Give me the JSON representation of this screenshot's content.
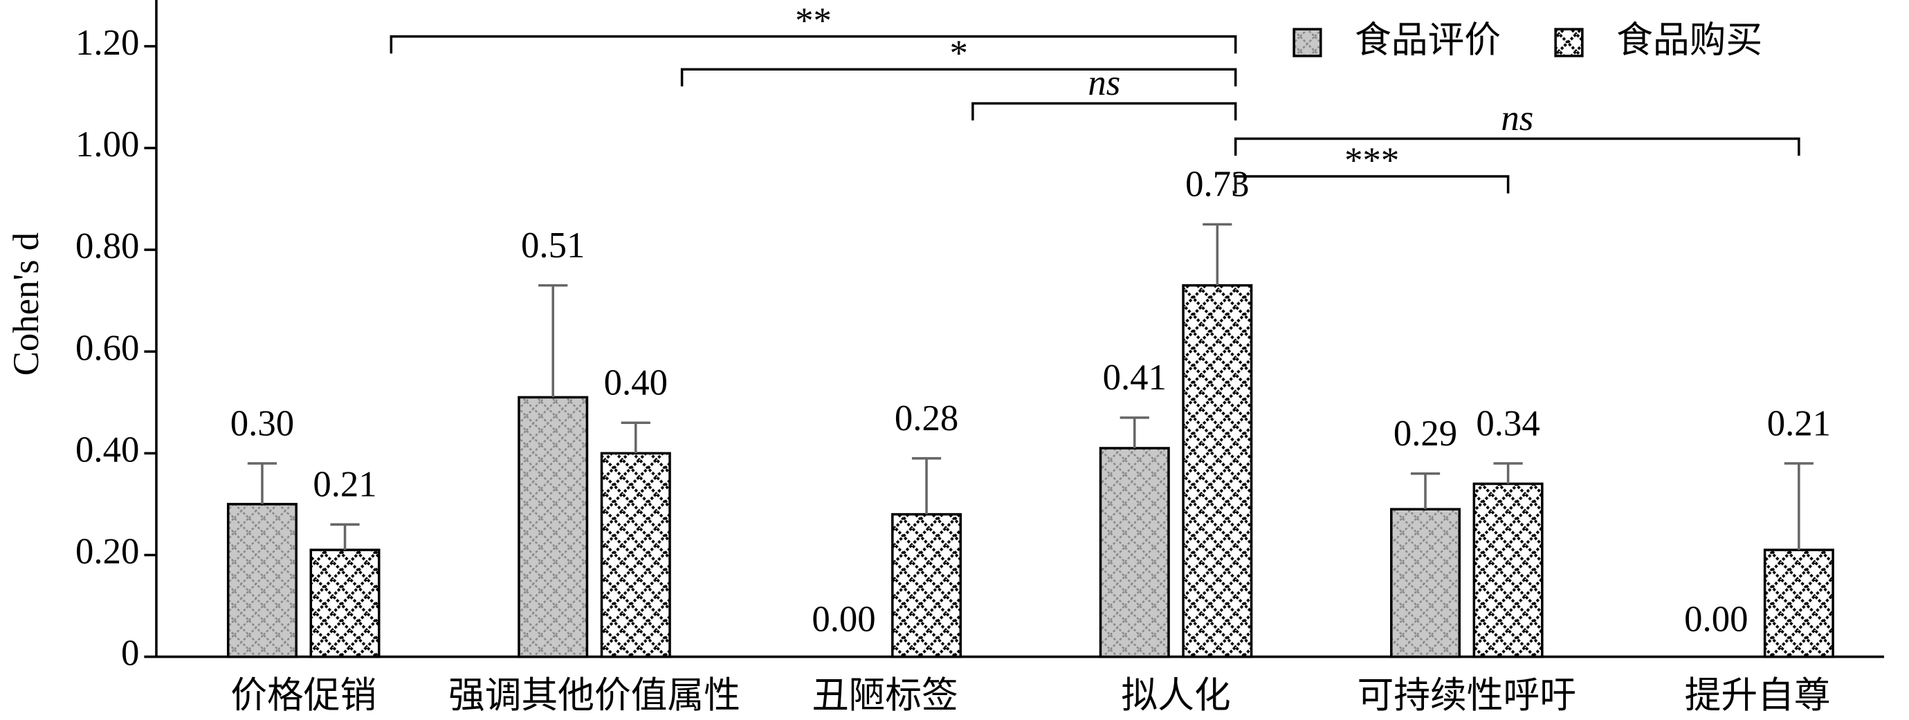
{
  "chart_data": {
    "type": "bar",
    "y_label": "Cohen's d",
    "categories": [
      "价格促销",
      "强调其他价值属性",
      "丑陋标签",
      "拟人化",
      "可持续性呼吁",
      "提升自尊"
    ],
    "series": [
      {
        "name": "食品评价",
        "color": "#c8c8c8",
        "values": [
          0.3,
          0.51,
          0,
          0.41,
          0.29,
          0
        ],
        "value_labels": [
          "0.30",
          "0.51",
          "0.00",
          "0.41",
          "0.29",
          "0.00"
        ],
        "errors": [
          0.08,
          0.22,
          null,
          0.06,
          0.07,
          null
        ]
      },
      {
        "name": "食品购买",
        "color": "#ffffff",
        "values": [
          0.21,
          0.4,
          0.28,
          0.73,
          0.34,
          0.21
        ],
        "value_labels": [
          "0.21",
          "0.40",
          "0.28",
          "0.73",
          "0.34",
          "0.21"
        ],
        "errors": [
          0.05,
          0.06,
          0.11,
          0.12,
          0.04,
          0.17
        ]
      }
    ],
    "ylim": [
      0,
      1.29
    ],
    "yticks": [
      {
        "value": 0,
        "label": "0"
      },
      {
        "value": 0.2,
        "label": "0.20"
      },
      {
        "value": 0.4,
        "label": "0.40"
      },
      {
        "value": 0.6,
        "label": "0.60"
      },
      {
        "value": 0.8,
        "label": "0.80"
      },
      {
        "value": 1.0,
        "label": "1.00"
      },
      {
        "value": 1.2,
        "label": "1.20"
      }
    ],
    "brackets": [
      {
        "from": 0,
        "to": 3,
        "label": "**"
      },
      {
        "from": 1,
        "to": 3,
        "label": "*"
      },
      {
        "from": 2,
        "to": 3,
        "label": "ns"
      },
      {
        "from": 3,
        "to": 5,
        "label": "ns"
      },
      {
        "from": 3,
        "to": 4,
        "label": "***"
      }
    ],
    "legend": "upper right"
  }
}
